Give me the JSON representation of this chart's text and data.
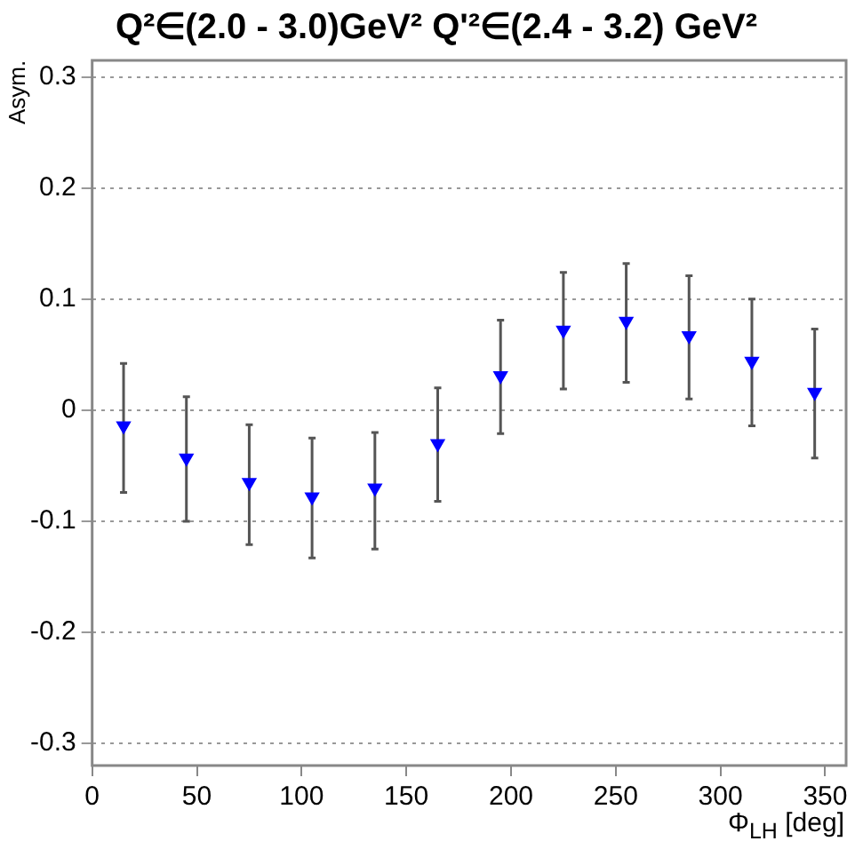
{
  "chart_data": {
    "type": "scatter",
    "title": "Q²∈(2.0 - 3.0)GeV² Q'²∈(2.4 - 3.2) GeV²",
    "xlabel": "Φ$_{LH}$ [deg]",
    "ylabel": "Asym.",
    "x": [
      15,
      45,
      75,
      105,
      135,
      165,
      195,
      225,
      255,
      285,
      315,
      345
    ],
    "series": [
      {
        "color": "#0000ff",
        "values": [
          -0.014,
          -0.043,
          -0.065,
          -0.078,
          -0.07,
          -0.03,
          0.031,
          0.072,
          0.08,
          0.067,
          0.044,
          0.016
        ],
        "errors": [
          [
            -0.074,
            0.042
          ],
          [
            -0.1,
            0.012
          ],
          [
            -0.121,
            -0.013
          ],
          [
            -0.133,
            -0.025
          ],
          [
            -0.125,
            -0.02
          ],
          [
            -0.082,
            0.02
          ],
          [
            -0.021,
            0.081
          ],
          [
            0.019,
            0.124
          ],
          [
            0.025,
            0.132
          ],
          [
            0.01,
            0.121
          ],
          [
            -0.014,
            0.1
          ],
          [
            -0.043,
            0.073
          ]
        ]
      }
    ],
    "xlim": [
      0,
      360
    ],
    "xticks": [
      0,
      50,
      100,
      150,
      200,
      250,
      300,
      350
    ],
    "ylim": [
      -0.32,
      0.315
    ],
    "yticks": [
      -0.3,
      -0.2,
      -0.1,
      0,
      0.1,
      0.2,
      0.3
    ],
    "grid": "y",
    "marker": "triangle",
    "legend": false
  }
}
